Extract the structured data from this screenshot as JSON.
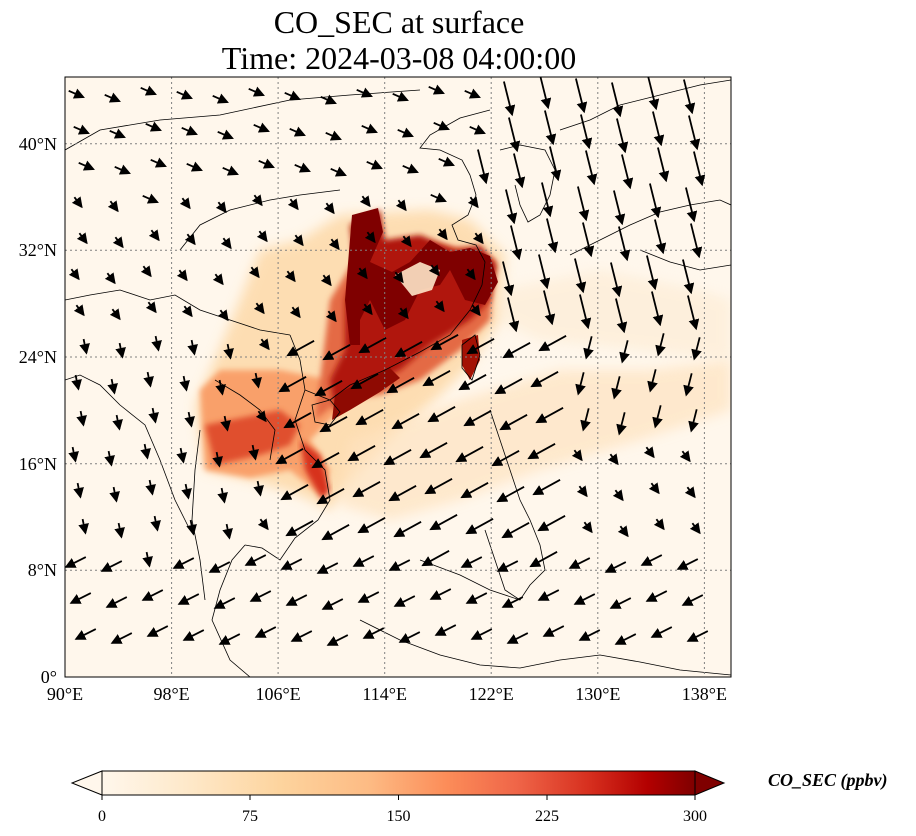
{
  "title": {
    "line1": "CO_SEC at surface",
    "line2": "Time: 2024-03-08 04:00:00"
  },
  "axes": {
    "lat_ticks": [
      "0°",
      "8°N",
      "16°N",
      "24°N",
      "32°N",
      "40°N"
    ],
    "lon_ticks": [
      "90°E",
      "98°E",
      "106°E",
      "114°E",
      "122°E",
      "130°E",
      "138°E"
    ],
    "lon_range": [
      90,
      140
    ],
    "lat_range": [
      0,
      45
    ]
  },
  "colorbar": {
    "label": "CO_SEC (ppbv)",
    "ticks": [
      "0",
      "75",
      "150",
      "225",
      "300"
    ],
    "range": [
      0,
      300
    ],
    "colormap": "OrRd",
    "extend": "both",
    "colors": [
      "#fff7ec",
      "#fee8c8",
      "#fdd49e",
      "#fdbb84",
      "#fc8d59",
      "#ef6548",
      "#d7301f",
      "#b30000",
      "#7f0000"
    ]
  },
  "colors": {
    "background": "#fff7ec",
    "grid": "#808080",
    "coast": "#000000"
  }
}
